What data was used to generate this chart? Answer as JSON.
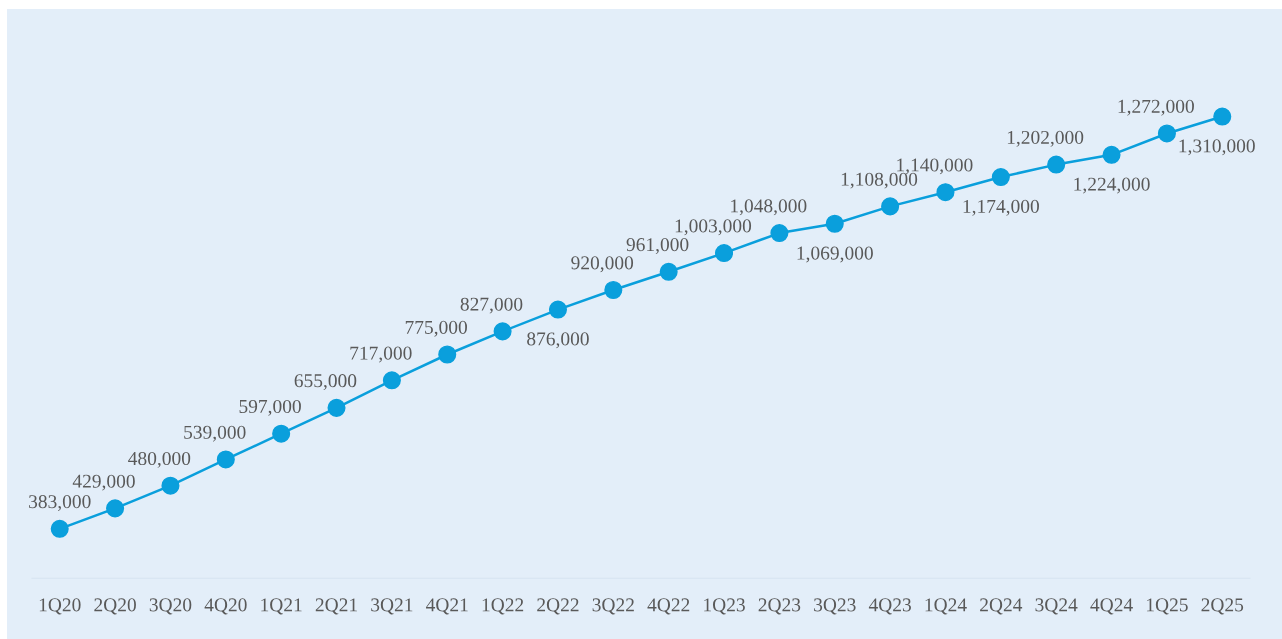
{
  "chart_data": {
    "type": "line",
    "categories": [
      "1Q20",
      "2Q20",
      "3Q20",
      "4Q20",
      "1Q21",
      "2Q21",
      "3Q21",
      "4Q21",
      "1Q22",
      "2Q22",
      "3Q22",
      "4Q22",
      "1Q23",
      "2Q23",
      "3Q23",
      "4Q23",
      "1Q24",
      "2Q24",
      "3Q24",
      "4Q24",
      "1Q25",
      "2Q25"
    ],
    "series": [
      {
        "color": "#0a9fdc",
        "values": [
          383000,
          429000,
          480000,
          539000,
          597000,
          655000,
          717000,
          775000,
          827000,
          876000,
          920000,
          961000,
          1003000,
          1048000,
          1069000,
          1108000,
          1140000,
          1174000,
          1202000,
          1224000,
          1272000,
          1310000
        ],
        "value_labels": [
          "383,000",
          "429,000",
          "480,000",
          "539,000",
          "597,000",
          "655,000",
          "717,000",
          "775,000",
          "827,000",
          "876,000",
          "920,000",
          "961,000",
          "1,003,000",
          "1,048,000",
          "1,069,000",
          "1,108,000",
          "1,140,000",
          "1,174,000",
          "1,202,000",
          "1,224,000",
          "1,272,000",
          "1,310,000"
        ]
      }
    ],
    "marker": "circle",
    "line_style": "solid",
    "grid": false,
    "legend": false,
    "tick_labels": "x"
  }
}
